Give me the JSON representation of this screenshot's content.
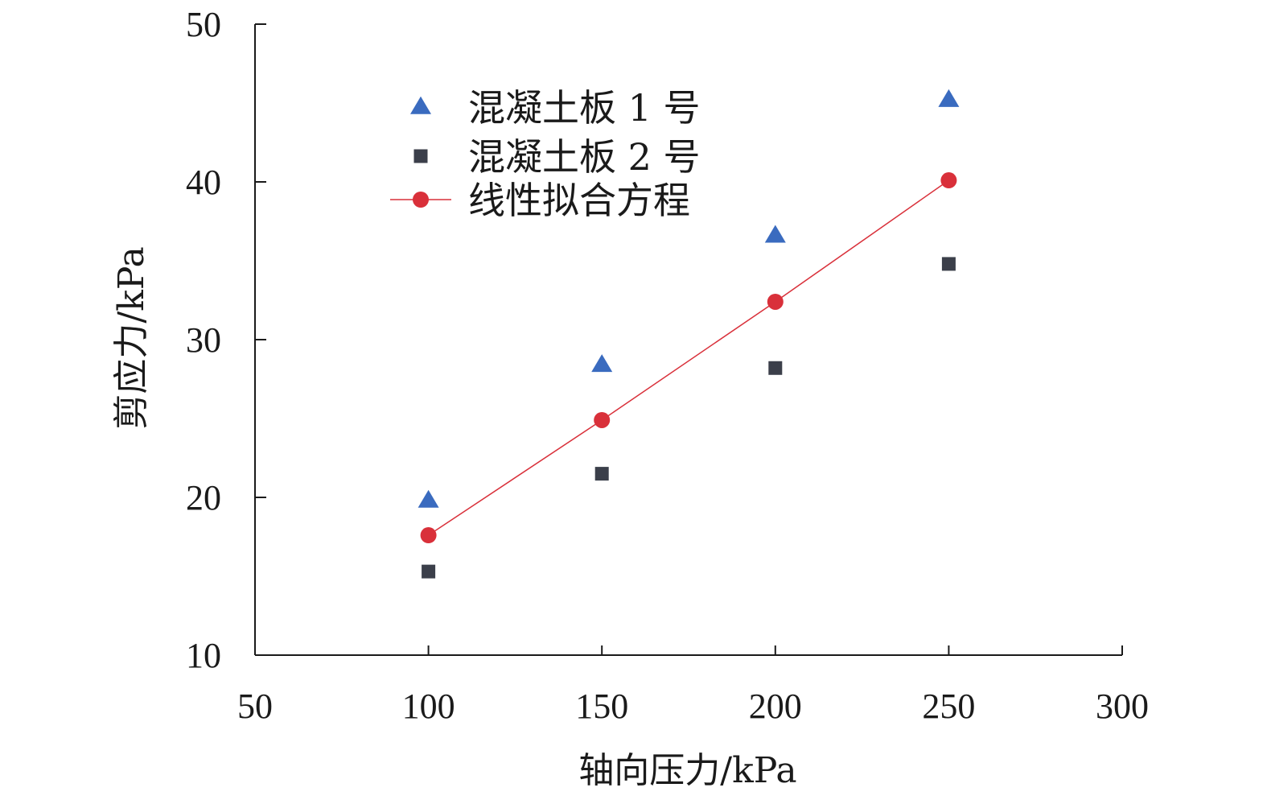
{
  "chart_data": {
    "type": "scatter",
    "xlabel": "轴向压力/kPa",
    "ylabel": "剪应力/kPa",
    "xlim": [
      50,
      300
    ],
    "ylim": [
      10,
      50
    ],
    "xticks": [
      50,
      100,
      150,
      200,
      250,
      300
    ],
    "yticks": [
      10,
      20,
      30,
      40,
      50
    ],
    "grid": false,
    "legend_position": "upper-left",
    "series": [
      {
        "name": "混凝土板 1 号",
        "marker": "triangle",
        "color": "#3a6bbf",
        "points": [
          {
            "x": 100,
            "y": 19.8
          },
          {
            "x": 150,
            "y": 28.4
          },
          {
            "x": 200,
            "y": 36.6
          },
          {
            "x": 250,
            "y": 45.2
          }
        ]
      },
      {
        "name": "混凝土板 2 号",
        "marker": "square",
        "color": "#3b3f4a",
        "points": [
          {
            "x": 100,
            "y": 15.3
          },
          {
            "x": 150,
            "y": 21.5
          },
          {
            "x": 200,
            "y": 28.2
          },
          {
            "x": 250,
            "y": 34.8
          }
        ]
      },
      {
        "name": "线性拟合方程",
        "marker": "circle",
        "color": "#d9303a",
        "line": true,
        "points": [
          {
            "x": 100,
            "y": 17.6
          },
          {
            "x": 150,
            "y": 24.9
          },
          {
            "x": 200,
            "y": 32.4
          },
          {
            "x": 250,
            "y": 40.1
          }
        ]
      }
    ]
  }
}
